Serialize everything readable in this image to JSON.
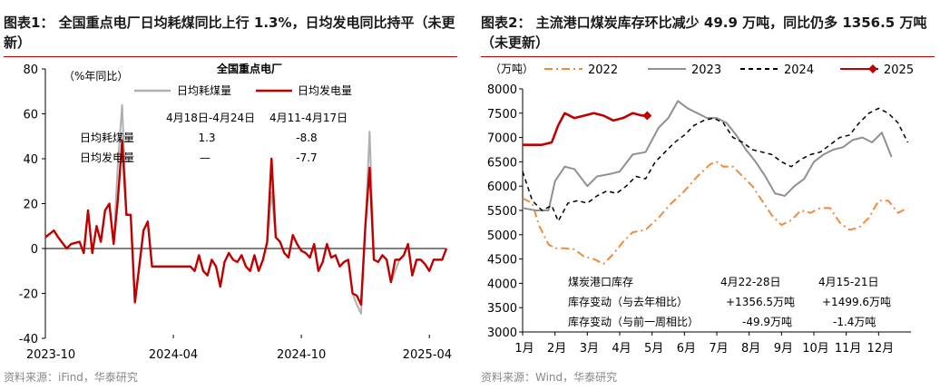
{
  "left": {
    "title": "图表1： 全国重点电厂日均耗煤同比上行 1.3%，日均发电同比持平（未更新）",
    "source": "资料来源：iFind，华泰研究",
    "chart_data": {
      "type": "line",
      "title": "全国重点电厂",
      "ylabel": "（%年同比）",
      "ylim": [
        -40,
        80
      ],
      "yticks": [
        -40,
        -20,
        0,
        20,
        40,
        60,
        80
      ],
      "xtick_labels": [
        "2023-10",
        "2024-04",
        "2024-10",
        "2025-04"
      ],
      "xtick_positions": [
        0,
        30,
        60,
        90
      ],
      "xlim": [
        0,
        94
      ],
      "series": [
        {
          "name": "日均耗煤量",
          "color": "#b0b0b0",
          "width": 2,
          "x": [
            0,
            2,
            3,
            5,
            6,
            8,
            9,
            10,
            11,
            12,
            13,
            14,
            15,
            16,
            17,
            18,
            19,
            20,
            21,
            22,
            23,
            24,
            25,
            26,
            27,
            28,
            29,
            30,
            31,
            32,
            33,
            34,
            35,
            36,
            37,
            38,
            39,
            40,
            41,
            42,
            43,
            44,
            45,
            46,
            47,
            48,
            49,
            50,
            51,
            52,
            53,
            54,
            55,
            56,
            57,
            58,
            59,
            60,
            61,
            62,
            63,
            64,
            65,
            66,
            67,
            68,
            69,
            70,
            71,
            72,
            73,
            74,
            75,
            76,
            77,
            78,
            79,
            80,
            81,
            82,
            83,
            84,
            85,
            86,
            87,
            88,
            89,
            90,
            91,
            92,
            93,
            94
          ],
          "y": [
            5,
            8,
            5,
            0,
            2,
            3,
            -2,
            17,
            -2,
            10,
            3,
            17,
            20,
            2,
            38,
            64,
            15,
            15,
            -24,
            -8,
            8,
            12,
            -8,
            -8,
            -8,
            -8,
            -8,
            -8,
            -8,
            -8,
            -8,
            -8,
            -10,
            -3,
            -10,
            -12,
            -5,
            -8,
            -17,
            -6,
            -2,
            -5,
            -6,
            -3,
            -8,
            -10,
            -3,
            -10,
            -5,
            3,
            25,
            5,
            3,
            -2,
            -4,
            6,
            2,
            -1,
            -2,
            -4,
            2,
            -10,
            -6,
            2,
            -4,
            -3,
            -8,
            -6,
            -5,
            -20,
            -25,
            -29,
            10,
            52,
            -5,
            -6,
            -3,
            -5,
            -15,
            -10,
            -5,
            -3,
            2,
            -12,
            -5,
            -5,
            -7,
            -10,
            -5,
            -5,
            -5,
            0
          ],
          "x_trim": true
        },
        {
          "name": "日均发电量",
          "color": "#c00000",
          "width": 2.4,
          "y_ref": "red"
        }
      ],
      "annotations": {
        "header_a": "4月18日-4月24日",
        "header_b": "4月11-4月17日",
        "row1_label": "日均耗煤量",
        "row1_a": "1.3",
        "row1_b": "-8.8",
        "row2_label": "日均发电量",
        "row2_a": "—",
        "row2_b": "-7.7"
      }
    }
  },
  "right": {
    "title": "图表2： 主流港口煤炭库存环比减少 49.9 万吨，同比仍多 1356.5 万吨（未更新）",
    "source": "资料来源：Wind，华泰研究",
    "chart_data": {
      "type": "line",
      "ylabel": "（万吨）",
      "ylim": [
        3000,
        8000
      ],
      "yticks": [
        3000,
        3500,
        4000,
        4500,
        5000,
        5500,
        6000,
        6500,
        7000,
        7500,
        8000
      ],
      "xtick_labels": [
        "1月",
        "2月",
        "3月",
        "4月",
        "5月",
        "6月",
        "7月",
        "8月",
        "9月",
        "10月",
        "11月",
        "12月"
      ],
      "xlim": [
        1,
        13
      ],
      "series": [
        {
          "name": "2022",
          "color": "#f28a3c",
          "style": "dashdot",
          "x": [
            1,
            1.3,
            1.5,
            1.8,
            2,
            2.3,
            2.6,
            2.9,
            3.2,
            3.5,
            3.8,
            4.1,
            4.4,
            4.8,
            5.2,
            5.6,
            6,
            6.4,
            6.8,
            7,
            7.2,
            7.5,
            7.8,
            8.1,
            8.4,
            8.7,
            9,
            9.3,
            9.6,
            9.9,
            10.2,
            10.5,
            10.8,
            11.1,
            11.4,
            11.7,
            12,
            12.3,
            12.6,
            12.9
          ],
          "y": [
            5750,
            5650,
            5200,
            4800,
            4720,
            4720,
            4700,
            4550,
            4500,
            4400,
            4600,
            4850,
            5050,
            5100,
            5350,
            5650,
            5900,
            6200,
            6450,
            6500,
            6400,
            6400,
            6200,
            6000,
            5700,
            5400,
            5200,
            5300,
            5500,
            5450,
            5550,
            5550,
            5250,
            5100,
            5150,
            5350,
            5700,
            5700,
            5450,
            5550
          ]
        },
        {
          "name": "2023",
          "color": "#909090",
          "style": "solid",
          "x": [
            1,
            1.4,
            1.8,
            2,
            2.3,
            2.6,
            3,
            3.3,
            3.7,
            4,
            4.4,
            4.8,
            5.2,
            5.5,
            5.8,
            6.1,
            6.4,
            6.7,
            7,
            7.3,
            7.6,
            7.9,
            8.2,
            8.5,
            8.8,
            9.1,
            9.4,
            9.7,
            10,
            10.3,
            10.6,
            10.9,
            11.2,
            11.5,
            11.8,
            12.1,
            12.4
          ],
          "y": [
            5550,
            5500,
            5500,
            6100,
            6400,
            6350,
            6000,
            6200,
            6250,
            6300,
            6650,
            6700,
            7200,
            7400,
            7750,
            7600,
            7500,
            7400,
            7400,
            7300,
            7050,
            6750,
            6500,
            6200,
            5850,
            5800,
            6000,
            6150,
            6500,
            6650,
            6750,
            6800,
            6950,
            7000,
            6900,
            7100,
            6600
          ]
        },
        {
          "name": "2024",
          "color": "#000000",
          "style": "dashed",
          "x": [
            1,
            1.3,
            1.6,
            1.9,
            2.1,
            2.4,
            2.7,
            3,
            3.3,
            3.6,
            3.9,
            4.2,
            4.5,
            4.8,
            5.1,
            5.4,
            5.7,
            6,
            6.3,
            6.6,
            6.9,
            7.2,
            7.5,
            7.8,
            8.1,
            8.4,
            8.7,
            9,
            9.3,
            9.6,
            9.9,
            10.2,
            10.5,
            10.8,
            11.1,
            11.4,
            11.7,
            12,
            12.3,
            12.6,
            12.9
          ],
          "y": [
            6300,
            5700,
            5500,
            5600,
            5280,
            5650,
            5700,
            5650,
            5800,
            5900,
            5850,
            6000,
            6200,
            6150,
            6500,
            6700,
            6900,
            7050,
            7250,
            7350,
            7400,
            7300,
            7000,
            6900,
            6750,
            6700,
            6650,
            6500,
            6400,
            6550,
            6650,
            6700,
            6850,
            7000,
            7050,
            7300,
            7500,
            7600,
            7500,
            7300,
            6900
          ]
        },
        {
          "name": "2025",
          "color": "#c00000",
          "style": "solid-marker",
          "x": [
            1,
            1.3,
            1.6,
            1.9,
            2.1,
            2.3,
            2.6,
            2.9,
            3.2,
            3.5,
            3.8,
            4.1,
            4.4,
            4.7,
            4.85
          ],
          "y": [
            6850,
            6850,
            6850,
            6900,
            7250,
            7500,
            7400,
            7450,
            7500,
            7450,
            7350,
            7400,
            7500,
            7450,
            7450
          ]
        }
      ],
      "annotations": {
        "header_label": "煤炭港口库存",
        "header_a": "4月22-28日",
        "header_b": "4月15-21日",
        "row1_label": "库存变动（与去年相比）",
        "row1_a": "+1356.5万吨",
        "row1_b": "+1499.6万吨",
        "row2_label": "库存变动（与前一周相比）",
        "row2_a": "-49.9万吨",
        "row2_b": "-1.4万吨"
      }
    }
  }
}
